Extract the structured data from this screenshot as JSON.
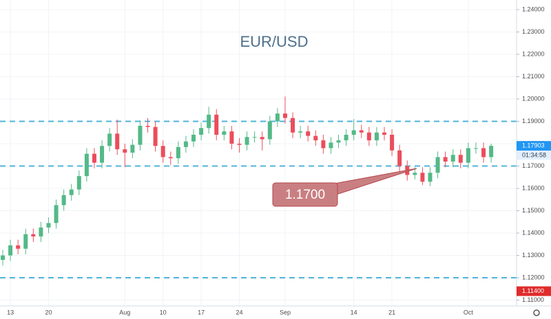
{
  "chart_data": {
    "type": "candlestick",
    "title": "EUR/USD",
    "categories": [
      null,
      "13",
      null,
      null,
      null,
      null,
      "20",
      null,
      null,
      null,
      null,
      null,
      null,
      null,
      null,
      null,
      "Aug",
      null,
      null,
      null,
      null,
      "10",
      null,
      null,
      null,
      null,
      "17",
      null,
      null,
      null,
      null,
      "24",
      null,
      null,
      null,
      null,
      null,
      "Sep",
      null,
      null,
      null,
      null,
      null,
      null,
      null,
      null,
      "14",
      null,
      null,
      null,
      null,
      "21",
      null,
      null,
      null,
      null,
      null,
      null,
      null,
      null,
      null,
      "Oct",
      null,
      null,
      null
    ],
    "open": [
      1.128,
      1.13,
      1.1345,
      1.133,
      1.1395,
      1.1385,
      1.1425,
      1.1445,
      1.1525,
      1.157,
      1.1595,
      1.1655,
      1.1755,
      1.1715,
      1.179,
      1.1845,
      1.1775,
      1.176,
      1.1795,
      1.188,
      1.1875,
      1.179,
      1.174,
      1.1735,
      1.1785,
      1.181,
      1.184,
      1.187,
      1.193,
      1.184,
      1.1855,
      1.18,
      1.1795,
      1.183,
      1.183,
      1.182,
      1.19,
      1.1935,
      1.1915,
      1.185,
      1.1855,
      1.1835,
      1.1815,
      1.178,
      1.1805,
      1.1815,
      1.184,
      1.186,
      1.185,
      1.1815,
      1.185,
      1.184,
      1.177,
      1.17,
      1.166,
      1.167,
      1.163,
      1.167,
      1.174,
      1.172,
      1.175,
      1.1715,
      1.178,
      1.178,
      1.174
    ],
    "high": [
      1.1325,
      1.137,
      1.137,
      1.142,
      1.142,
      1.145,
      1.147,
      1.155,
      1.1595,
      1.162,
      1.168,
      1.178,
      1.178,
      1.1815,
      1.187,
      1.1908,
      1.18,
      1.182,
      1.1905,
      1.1915,
      1.19,
      1.1815,
      1.1765,
      1.181,
      1.1835,
      1.1865,
      1.1895,
      1.1965,
      1.1955,
      1.188,
      1.188,
      1.1825,
      1.1855,
      1.1855,
      1.1855,
      1.1925,
      1.196,
      1.2011,
      1.194,
      1.188,
      1.188,
      1.186,
      1.184,
      1.183,
      1.184,
      1.1865,
      1.191,
      1.1885,
      1.1875,
      1.1875,
      1.1875,
      1.1865,
      1.1795,
      1.1725,
      1.1695,
      1.1695,
      1.1695,
      1.1765,
      1.1765,
      1.1775,
      1.1775,
      1.1805,
      1.1805,
      1.1805,
      1.18
    ],
    "low": [
      1.1255,
      1.1275,
      1.1305,
      1.1305,
      1.136,
      1.136,
      1.14,
      1.142,
      1.15,
      1.1545,
      1.157,
      1.163,
      1.169,
      1.169,
      1.1765,
      1.175,
      1.1695,
      1.1735,
      1.177,
      1.185,
      1.1765,
      1.1715,
      1.1705,
      1.171,
      1.176,
      1.1785,
      1.1815,
      1.1845,
      1.1815,
      1.1815,
      1.1775,
      1.176,
      1.177,
      1.1805,
      1.177,
      1.1795,
      1.1875,
      1.189,
      1.1825,
      1.1825,
      1.181,
      1.179,
      1.1755,
      1.1755,
      1.178,
      1.179,
      1.1815,
      1.1825,
      1.179,
      1.179,
      1.1815,
      1.1745,
      1.1675,
      1.1635,
      1.164,
      1.1615,
      1.161,
      1.1645,
      1.1695,
      1.1695,
      1.169,
      1.169,
      1.1755,
      1.1715,
      1.1715
    ],
    "close": [
      1.13,
      1.1345,
      1.133,
      1.1395,
      1.1385,
      1.1425,
      1.1445,
      1.1525,
      1.157,
      1.1595,
      1.1655,
      1.1755,
      1.1715,
      1.179,
      1.1845,
      1.1775,
      1.176,
      1.1795,
      1.188,
      1.1875,
      1.179,
      1.174,
      1.1735,
      1.1785,
      1.181,
      1.184,
      1.187,
      1.193,
      1.184,
      1.1855,
      1.18,
      1.1795,
      1.183,
      1.183,
      1.182,
      1.19,
      1.1935,
      1.1915,
      1.185,
      1.1855,
      1.1835,
      1.1815,
      1.178,
      1.1805,
      1.1815,
      1.184,
      1.186,
      1.185,
      1.1815,
      1.185,
      1.184,
      1.177,
      1.17,
      1.166,
      1.167,
      1.163,
      1.167,
      1.174,
      1.172,
      1.175,
      1.1715,
      1.178,
      1.178,
      1.174,
      1.17903
    ],
    "up_color": "#53b987",
    "down_color": "#eb4d5c",
    "ylim": [
      1.1074,
      1.2443
    ],
    "yticks": [
      {
        "value": 1.11,
        "label": "1.11000"
      },
      {
        "value": 1.12,
        "label": "1.12000"
      },
      {
        "value": 1.13,
        "label": "1.13000"
      },
      {
        "value": 1.14,
        "label": "1.14000"
      },
      {
        "value": 1.15,
        "label": "1.15000"
      },
      {
        "value": 1.16,
        "label": "1.16000"
      },
      {
        "value": 1.17,
        "label": "1.17000"
      },
      {
        "value": 1.18,
        "label": "1.18000"
      },
      {
        "value": 1.19,
        "label": "1.19000"
      },
      {
        "value": 1.2,
        "label": "1.20000"
      },
      {
        "value": 1.21,
        "label": "1.21000"
      },
      {
        "value": 1.22,
        "label": "1.22000"
      },
      {
        "value": 1.23,
        "label": "1.23000"
      },
      {
        "value": 1.24,
        "label": "1.24000"
      }
    ],
    "grid": true,
    "levels": [
      1.19,
      1.17,
      1.12
    ],
    "level_color": "#4fb3d9",
    "last_price": 1.17903,
    "countdown": "01:34:58",
    "alert_price": {
      "value": 1.114,
      "label": "1.11400"
    },
    "annotation": "1.1700"
  }
}
